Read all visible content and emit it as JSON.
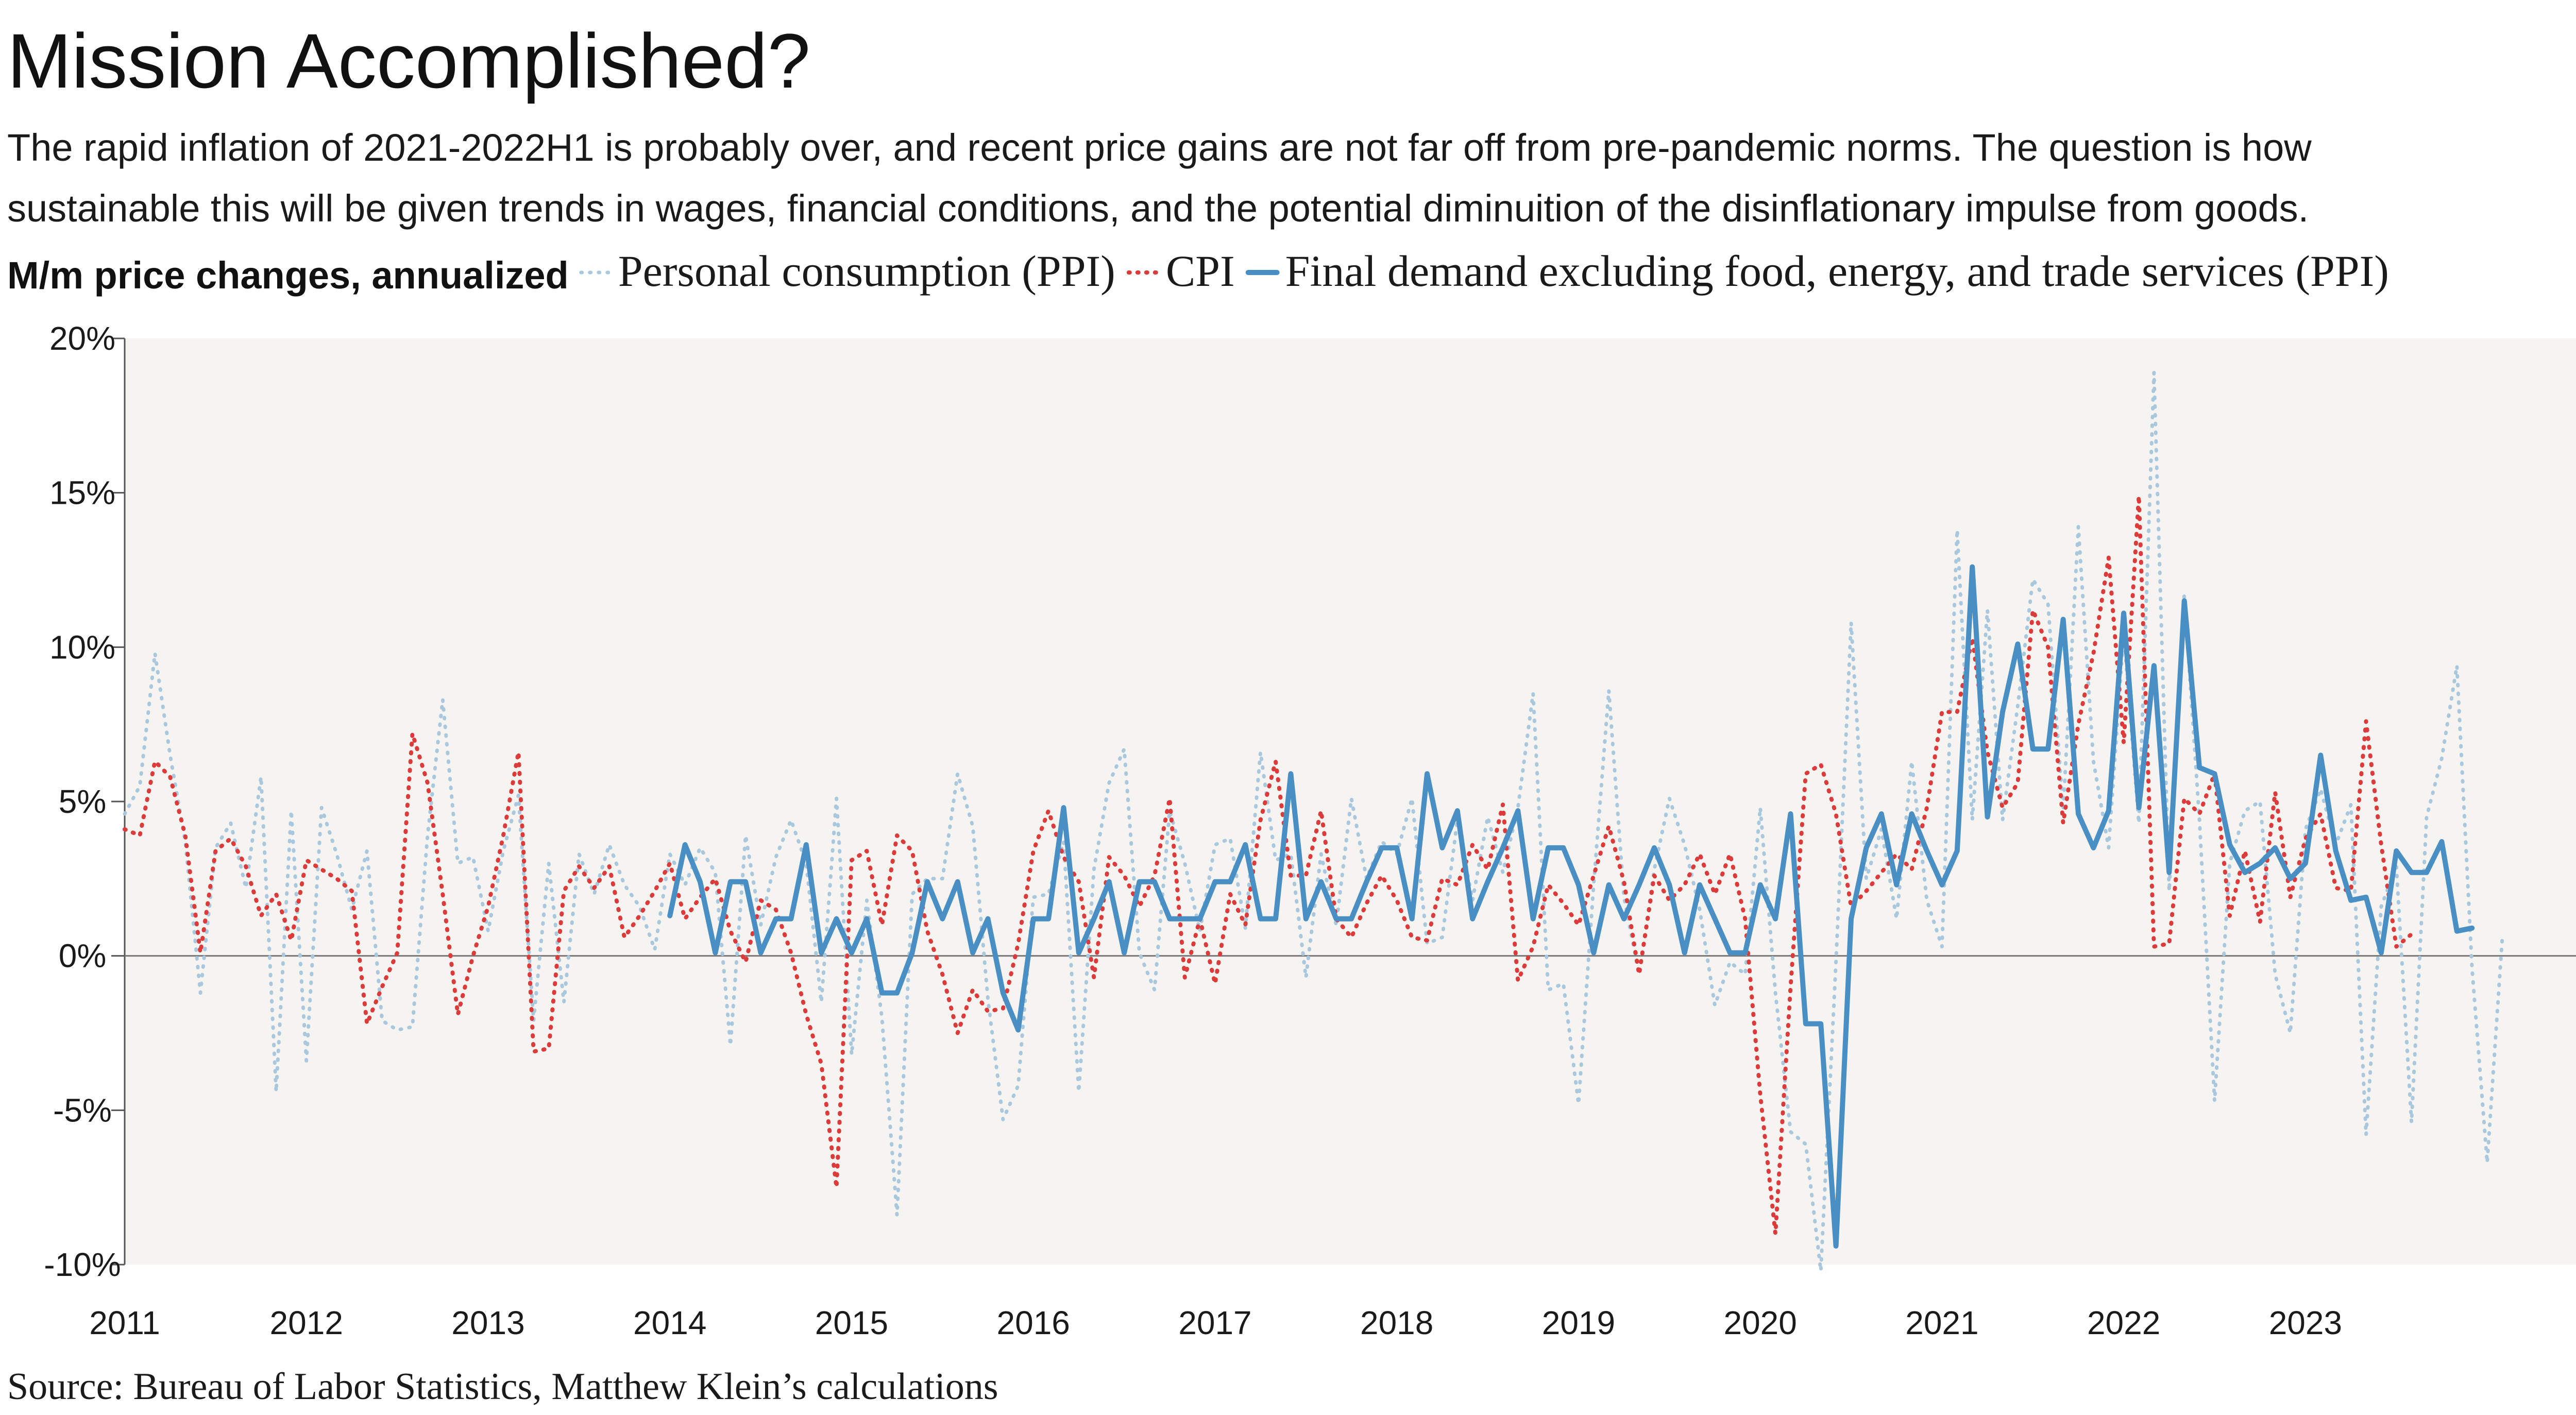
{
  "header": {
    "title": "Mission Accomplished?",
    "subtitle_line1": "The rapid inflation of 2021-2022H1 is probably over, and recent price gains are not far off from pre-pandemic norms. The question is how",
    "subtitle_line2": "sustainable this will be given trends in wages, financial conditions, and the potential diminuition of the disinflationary impulse from goods."
  },
  "footer": {
    "source": "Source: Bureau of Labor Statistics, Matthew Klein’s calculations"
  },
  "colors": {
    "personal_consumption": "#a9c8dd",
    "cpi": "#dc3b3b",
    "final_demand": "#4a8fc4",
    "plot_background": "#f6f4f1",
    "zero_line": "#777777"
  },
  "chart_data": {
    "type": "line",
    "title": "Mission Accomplished?",
    "ylabel": "M/m price changes, annualized",
    "xlabel": "",
    "x_ticks": [
      "2011",
      "2012",
      "2013",
      "2014",
      "2015",
      "2016",
      "2017",
      "2018",
      "2019",
      "2020",
      "2021",
      "2022",
      "2023"
    ],
    "y_ticks": [
      "20%",
      "15%",
      "10%",
      "5%",
      "0%",
      "-5%",
      "-10%"
    ],
    "y_tick_values": [
      20,
      15,
      10,
      5,
      0,
      -5,
      -10
    ],
    "ylim": [
      -10,
      20
    ],
    "xlim": [
      "2011-01",
      "2024-07"
    ],
    "grid": false,
    "legend_position": "top",
    "series": [
      {
        "name": "Personal consumption (PPI)",
        "style": "dotted",
        "start": "2011-01",
        "values": [
          4.6,
          5.5,
          9.8,
          6.5,
          3.7,
          -1.2,
          3.5,
          4.3,
          2.2,
          5.8,
          -4.4,
          4.7,
          -3.4,
          4.8,
          3.3,
          1.5,
          3.4,
          -2.1,
          -2.4,
          -2.3,
          3.9,
          8.3,
          3.0,
          3.2,
          0.8,
          3.4,
          5.2,
          -2.1,
          3.0,
          -1.5,
          3.3,
          2.0,
          3.6,
          2.3,
          1.6,
          0.2,
          3.3,
          2.3,
          3.5,
          2.7,
          -2.9,
          3.9,
          1.0,
          3.2,
          4.4,
          3.0,
          -1.5,
          5.1,
          -3.2,
          1.8,
          -2.0,
          -8.4,
          2.0,
          2.5,
          2.5,
          5.9,
          4.2,
          -1.4,
          -5.3,
          -4.2,
          1.9,
          2.0,
          3.7,
          -4.4,
          2.8,
          5.6,
          6.7,
          0.1,
          -1.1,
          4.7,
          3.0,
          0.8,
          3.6,
          3.8,
          0.9,
          6.6,
          3.1,
          3.3,
          -0.7,
          3.3,
          1.0,
          5.1,
          2.5,
          3.7,
          3.3,
          5.1,
          0.4,
          0.6,
          4.4,
          1.8,
          4.5,
          2.7,
          4.8,
          8.5,
          -1.1,
          -0.9,
          -4.8,
          2.3,
          8.6,
          1.9,
          -0.6,
          2.8,
          5.1,
          3.6,
          1.5,
          -1.6,
          -0.2,
          -0.6,
          4.8,
          -1.2,
          -5.7,
          -6.1,
          -10.2,
          -0.2,
          10.8,
          2.5,
          4.1,
          1.2,
          6.3,
          1.8,
          0.3,
          13.8,
          4.4,
          11.2,
          4.4,
          8.1,
          12.2,
          11.4,
          4.7,
          13.9,
          6.3,
          3.5,
          10.5,
          4.3,
          18.9,
          2.1,
          11.7,
          4.4,
          -4.7,
          3.0,
          4.7,
          5.0,
          -0.6,
          -2.5,
          4.1,
          5.4,
          3.6,
          4.9,
          -5.8,
          1.6,
          2.9,
          -5.4,
          4.5,
          6.4,
          9.4,
          -0.4,
          -6.7,
          0.6
        ]
      },
      {
        "name": "CPI",
        "style": "dotted",
        "start": "2011-01",
        "values": [
          4.1,
          3.9,
          6.3,
          5.8,
          3.9,
          0.1,
          3.4,
          3.8,
          2.9,
          1.3,
          2.0,
          0.5,
          3.1,
          2.8,
          2.5,
          2.1,
          -2.2,
          -1.0,
          0.1,
          7.2,
          5.6,
          2.0,
          -1.9,
          0.0,
          1.6,
          3.9,
          6.6,
          -3.1,
          -3.0,
          2.1,
          2.9,
          2.2,
          2.9,
          0.6,
          1.3,
          2.1,
          3.0,
          1.2,
          1.9,
          2.5,
          0.8,
          -0.2,
          1.8,
          1.5,
          0.1,
          -1.9,
          -3.5,
          -7.5,
          3.1,
          3.4,
          1.0,
          3.9,
          3.4,
          0.8,
          -0.6,
          -2.5,
          -1.1,
          -1.8,
          -1.7,
          0.4,
          3.4,
          4.7,
          3.2,
          2.4,
          -0.7,
          3.2,
          2.6,
          1.6,
          2.6,
          5.1,
          -0.7,
          1.2,
          -0.9,
          2.0,
          1.0,
          4.4,
          6.3,
          2.6,
          2.6,
          4.7,
          1.2,
          0.6,
          1.7,
          2.6,
          1.8,
          0.6,
          0.5,
          2.5,
          2.3,
          3.6,
          2.8,
          4.9,
          -0.8,
          0.3,
          2.3,
          1.7,
          1.0,
          2.6,
          4.2,
          2.4,
          -0.6,
          2.6,
          1.8,
          2.3,
          3.3,
          2.0,
          3.3,
          1.2,
          -4.5,
          -9.0,
          -1.0,
          5.9,
          6.2,
          4.6,
          1.6,
          2.1,
          2.7,
          3.3,
          2.8,
          4.8,
          7.9,
          7.9,
          10.3,
          6.6,
          4.8,
          5.6,
          11.2,
          10.0,
          4.3,
          7.5,
          9.8,
          12.9,
          6.9,
          14.9,
          0.3,
          0.4,
          5.1,
          4.6,
          5.9,
          1.3,
          3.4,
          1.1,
          5.3,
          1.9,
          3.8,
          4.6,
          2.2,
          2.1,
          7.6,
          3.6,
          0.3,
          0.7
        ]
      },
      {
        "name": "Final demand excluding food, energy, and trade services (PPI)",
        "style": "solid",
        "start": "2014-01",
        "values": [
          1.3,
          3.6,
          2.4,
          0.1,
          2.4,
          2.4,
          0.1,
          1.2,
          1.2,
          3.6,
          0.1,
          1.2,
          0.1,
          1.2,
          -1.2,
          -1.2,
          0.1,
          2.4,
          1.2,
          2.4,
          0.1,
          1.2,
          -1.2,
          -2.4,
          1.2,
          1.2,
          4.8,
          0.1,
          1.2,
          2.4,
          0.1,
          2.4,
          2.4,
          1.2,
          1.2,
          1.2,
          2.4,
          2.4,
          3.6,
          1.2,
          1.2,
          5.9,
          1.2,
          2.4,
          1.2,
          1.2,
          2.4,
          3.5,
          3.5,
          1.2,
          5.9,
          3.5,
          4.7,
          1.2,
          2.4,
          3.5,
          4.7,
          1.2,
          3.5,
          3.5,
          2.3,
          0.1,
          2.3,
          1.2,
          2.3,
          3.5,
          2.3,
          0.1,
          2.3,
          1.2,
          0.1,
          0.1,
          2.3,
          1.2,
          4.6,
          -2.2,
          -2.2,
          -9.4,
          1.2,
          3.5,
          4.6,
          2.3,
          4.6,
          3.4,
          2.3,
          3.4,
          12.6,
          4.5,
          7.9,
          10.1,
          6.7,
          6.7,
          10.9,
          4.6,
          3.5,
          4.7,
          11.1,
          4.8,
          9.4,
          2.7,
          11.5,
          6.1,
          5.9,
          3.6,
          2.7,
          3.0,
          3.5,
          2.5,
          3.0,
          6.5,
          3.4,
          1.8,
          1.9,
          0.1,
          3.4,
          2.7,
          2.7,
          3.7,
          0.8,
          0.9
        ]
      }
    ]
  }
}
